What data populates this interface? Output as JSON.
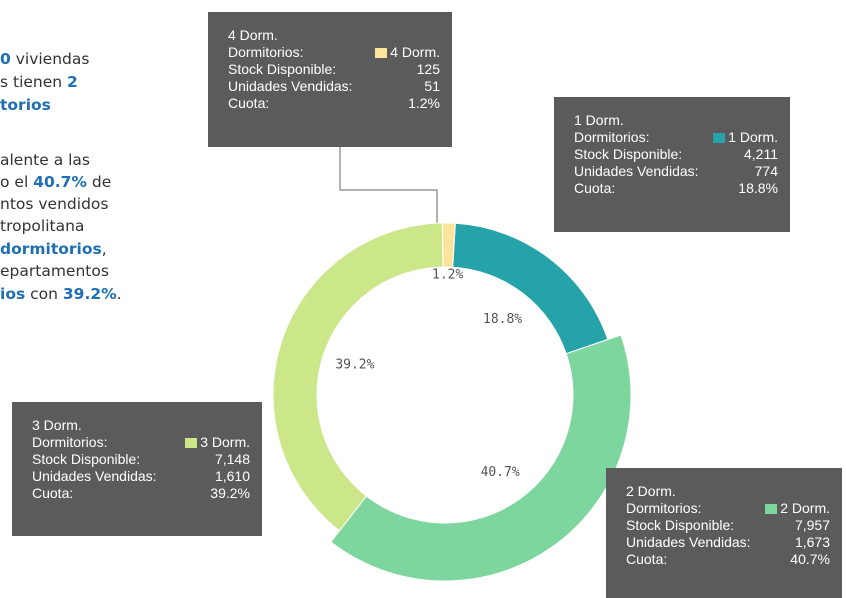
{
  "chart_data": {
    "type": "donut",
    "categories": [
      "1 Dorm.",
      "2 Dorm.",
      "3 Dorm.",
      "4 Dorm."
    ],
    "values": [
      18.8,
      40.7,
      39.2,
      1.2
    ],
    "value_labels": [
      "18.8%",
      "40.7%",
      "39.2%",
      "1.2%"
    ],
    "colors": [
      "#26a2a9",
      "#7dd69d",
      "#cbe78a",
      "#fde49c"
    ]
  },
  "intro": {
    "lines": [
      [
        "0",
        " viviendas"
      ],
      [
        "s tienen ",
        "2"
      ],
      [
        "torios"
      ],
      [
        "alente a las"
      ],
      [
        "o el ",
        "40.7%",
        " de"
      ],
      [
        "ntos vendidos"
      ],
      [
        "tropolitana"
      ],
      [
        "dormitorios",
        ","
      ],
      [
        "epartamentos"
      ],
      [
        "ios",
        " con ",
        "39.2%",
        "."
      ]
    ]
  },
  "tooltips": [
    {
      "title": "4 Dorm.",
      "rows": [
        [
          "Dormitorios:",
          "4 Dorm."
        ],
        [
          "Stock Disponible:",
          "125"
        ],
        [
          "Unidades Vendidas:",
          "51"
        ],
        [
          "Cuota:",
          "1.2%"
        ]
      ]
    },
    {
      "title": "1 Dorm.",
      "rows": [
        [
          "Dormitorios:",
          "1 Dorm."
        ],
        [
          "Stock Disponible:",
          "4,211"
        ],
        [
          "Unidades Vendidas:",
          "774"
        ],
        [
          "Cuota:",
          "18.8%"
        ]
      ]
    },
    {
      "title": "3 Dorm.",
      "rows": [
        [
          "Dormitorios:",
          "3 Dorm."
        ],
        [
          "Stock Disponible:",
          "7,148"
        ],
        [
          "Unidades Vendidas:",
          "1,610"
        ],
        [
          "Cuota:",
          "39.2%"
        ]
      ]
    },
    {
      "title": "2 Dorm.",
      "rows": [
        [
          "Dormitorios:",
          "2 Dorm."
        ],
        [
          "Stock Disponible:",
          "7,957"
        ],
        [
          "Unidades Vendidas:",
          "1,673"
        ],
        [
          "Cuota:",
          "40.7%"
        ]
      ]
    }
  ]
}
